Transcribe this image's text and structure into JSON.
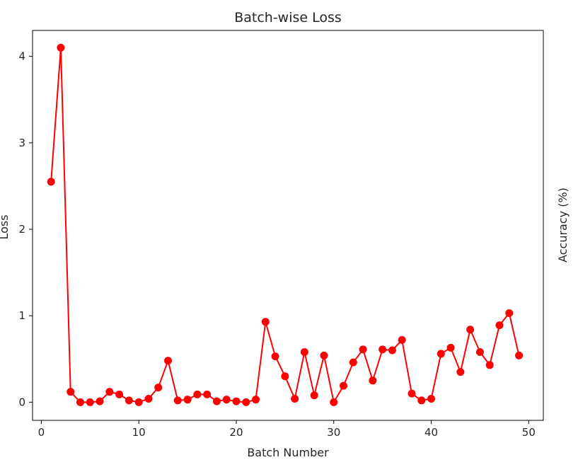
{
  "chart_data": {
    "type": "line",
    "title": "Batch-wise Loss",
    "xlabel": "Batch Number",
    "ylabel": "Loss",
    "secondary_ylabel": "Accuracy (%)",
    "xlim": [
      -0.9,
      51.5
    ],
    "ylim": [
      -0.21,
      4.3
    ],
    "xticks": [
      0,
      10,
      20,
      30,
      40,
      50
    ],
    "yticks": [
      0,
      1,
      2,
      3,
      4
    ],
    "grid": false,
    "series": [
      {
        "color": "#ff0000",
        "marker": "circle",
        "x": [
          1,
          2,
          3,
          4,
          5,
          6,
          7,
          8,
          9,
          10,
          11,
          12,
          13,
          14,
          15,
          16,
          17,
          18,
          19,
          20,
          21,
          22,
          23,
          24,
          25,
          26,
          27,
          28,
          29,
          30,
          31,
          32,
          33,
          34,
          35,
          36,
          37,
          38,
          39,
          40,
          41,
          42,
          43,
          44,
          45,
          46,
          47,
          48,
          49
        ],
        "y": [
          2.55,
          4.1,
          0.12,
          0.0,
          0.0,
          0.01,
          0.12,
          0.09,
          0.02,
          0.0,
          0.04,
          0.17,
          0.48,
          0.02,
          0.03,
          0.09,
          0.09,
          0.01,
          0.03,
          0.01,
          0.0,
          0.03,
          0.93,
          0.53,
          0.3,
          0.04,
          0.58,
          0.08,
          0.54,
          0.0,
          0.19,
          0.46,
          0.61,
          0.25,
          0.61,
          0.6,
          0.72,
          0.1,
          0.02,
          0.04,
          0.56,
          0.63,
          0.35,
          0.84,
          0.58,
          0.43,
          0.89,
          1.03,
          0.54
        ]
      }
    ]
  }
}
